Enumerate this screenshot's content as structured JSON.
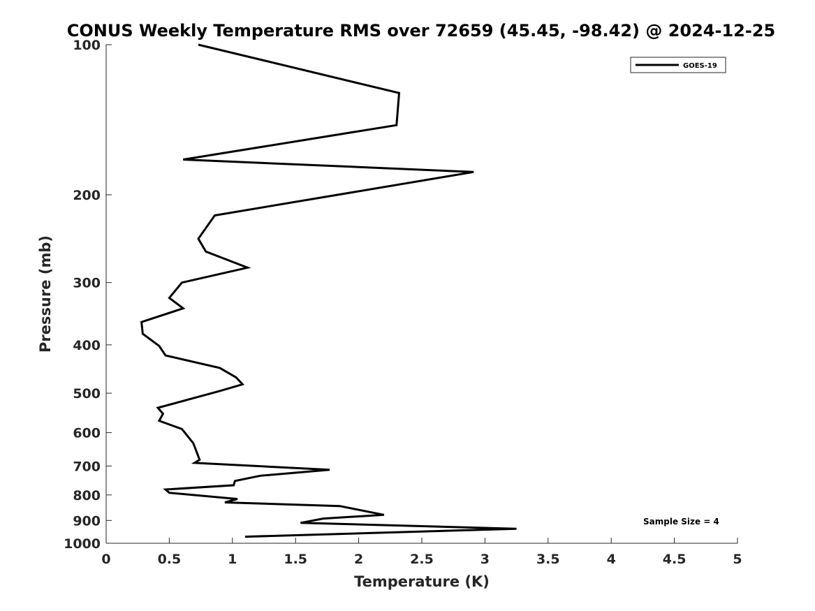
{
  "chart_data": {
    "type": "line",
    "title": "CONUS Weekly Temperature RMS over 72659 (45.45, -98.42) @ 2024-12-25",
    "xlabel": "Temperature (K)",
    "ylabel": "Pressure (mb)",
    "xlim": [
      0,
      5
    ],
    "ylim": [
      100,
      1000
    ],
    "y_scale": "log",
    "y_reversed": true,
    "x_ticks": [
      0,
      0.5,
      1,
      1.5,
      2,
      2.5,
      3,
      3.5,
      4,
      4.5,
      5
    ],
    "x_tick_labels": [
      "0",
      "0.5",
      "1",
      "1.5",
      "2",
      "2.5",
      "3",
      "3.5",
      "4",
      "4.5",
      "5"
    ],
    "y_ticks": [
      100,
      200,
      300,
      400,
      500,
      600,
      700,
      800,
      900,
      1000
    ],
    "y_tick_labels": [
      "100",
      "200",
      "300",
      "400",
      "500",
      "600",
      "700",
      "800",
      "900",
      "1000"
    ],
    "grid": false,
    "legend": {
      "position": "top-right",
      "entries": [
        "GOES-19"
      ]
    },
    "annotation": "Sample Size = 4",
    "series": [
      {
        "name": "GOES-19",
        "color": "#000000",
        "x": [
          0.73,
          2.32,
          2.3,
          0.61,
          2.91,
          0.86,
          0.73,
          0.79,
          1.12,
          0.6,
          0.5,
          0.61,
          0.28,
          0.29,
          0.42,
          0.47,
          0.9,
          1.03,
          1.08,
          0.9,
          0.41,
          0.45,
          0.42,
          0.6,
          0.69,
          0.74,
          0.7,
          1.77,
          1.22,
          1.02,
          1.01,
          0.47,
          0.5,
          1.04,
          0.94,
          1.85,
          2.2,
          1.72,
          1.54,
          3.25,
          1.1
        ],
        "y": [
          100,
          125,
          145,
          170,
          180,
          220,
          245,
          260,
          280,
          300,
          322,
          338,
          360,
          380,
          402,
          420,
          445,
          465,
          480,
          495,
          535,
          550,
          568,
          590,
          630,
          680,
          690,
          712,
          732,
          750,
          765,
          780,
          792,
          815,
          828,
          842,
          877,
          892,
          910,
          935,
          970
        ]
      }
    ]
  }
}
